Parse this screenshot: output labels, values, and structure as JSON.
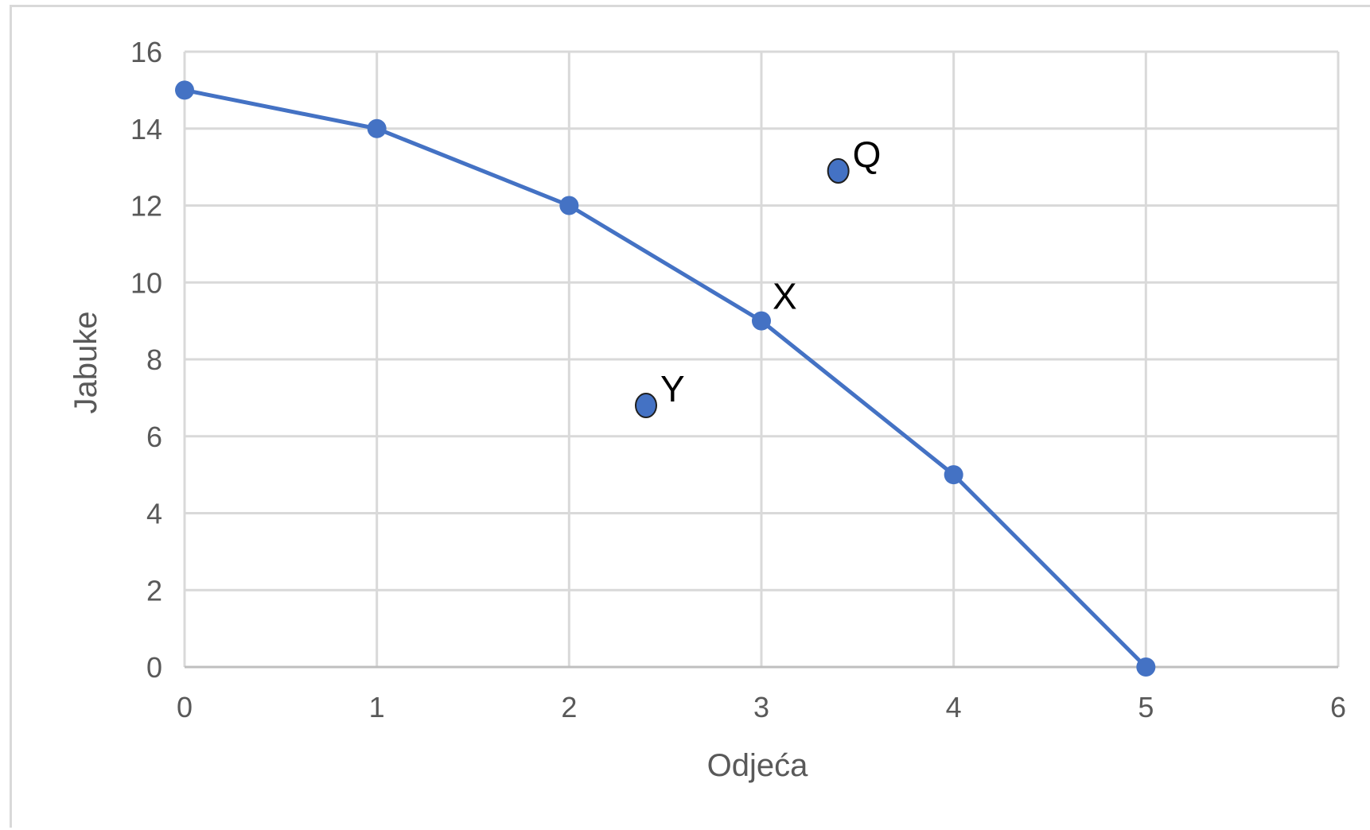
{
  "chart_data": {
    "type": "scatter",
    "title": "",
    "xlabel": "Odjeća",
    "ylabel": "Jabuke",
    "xlim": [
      0,
      6
    ],
    "ylim": [
      0,
      16
    ],
    "x_ticks": [
      0,
      1,
      2,
      3,
      4,
      5,
      6
    ],
    "y_ticks": [
      0,
      2,
      4,
      6,
      8,
      10,
      12,
      14,
      16
    ],
    "grid": true,
    "legend": "none",
    "series": [
      {
        "kind": "line-with-markers",
        "color": "#4472c4",
        "x": [
          0,
          1,
          2,
          3,
          4,
          5
        ],
        "y": [
          15,
          14,
          12,
          9,
          5,
          0
        ]
      }
    ],
    "annotations": [
      {
        "label": "X",
        "x": 3.0,
        "y": 9.0,
        "on_curve": true
      },
      {
        "label": "Q",
        "x": 3.4,
        "y": 12.9,
        "on_curve": false
      },
      {
        "label": "Y",
        "x": 2.4,
        "y": 6.8,
        "on_curve": false
      }
    ]
  }
}
